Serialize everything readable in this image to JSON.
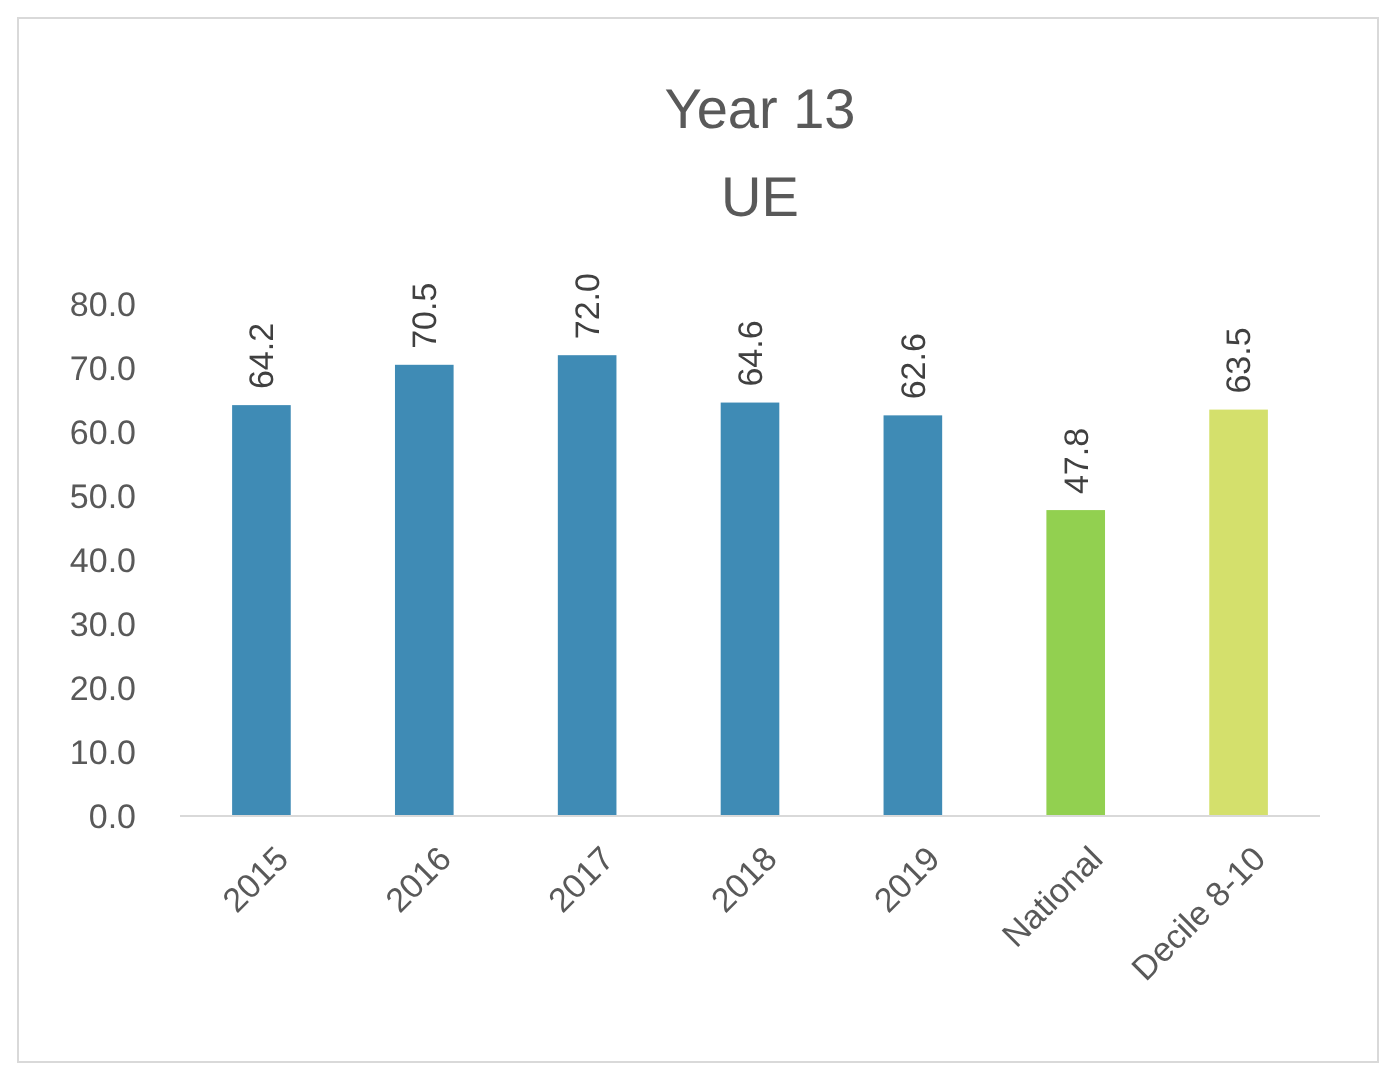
{
  "chart_data": {
    "type": "bar",
    "title": "Year 13",
    "subtitle": "UE",
    "categories": [
      "2015",
      "2016",
      "2017",
      "2018",
      "2019",
      "National",
      "Decile 8-10"
    ],
    "values": [
      64.2,
      70.5,
      72.0,
      64.6,
      62.6,
      47.8,
      63.5
    ],
    "colors": [
      "#3f8bb5",
      "#3f8bb5",
      "#3f8bb5",
      "#3f8bb5",
      "#3f8bb5",
      "#92d050",
      "#d4e06c"
    ],
    "value_labels": [
      "64.2",
      "70.5",
      "72.0",
      "64.6",
      "62.6",
      "47.8",
      "63.5"
    ],
    "ylim": [
      0,
      80
    ],
    "yticks": [
      {
        "value": 0,
        "label": "0.0"
      },
      {
        "value": 10,
        "label": "10.0"
      },
      {
        "value": 20,
        "label": "20.0"
      },
      {
        "value": 30,
        "label": "30.0"
      },
      {
        "value": 40,
        "label": "40.0"
      },
      {
        "value": 50,
        "label": "50.0"
      },
      {
        "value": 60,
        "label": "60.0"
      },
      {
        "value": 70,
        "label": "70.0"
      },
      {
        "value": 80,
        "label": "80.0"
      }
    ],
    "grid": false
  }
}
